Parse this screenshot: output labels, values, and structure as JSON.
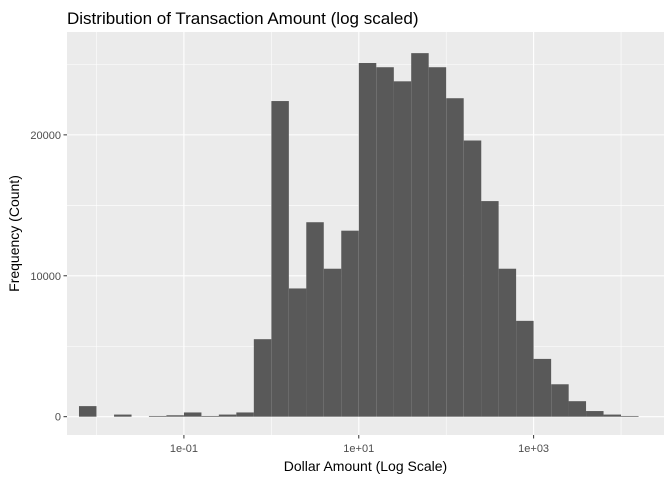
{
  "chart_data": {
    "type": "bar",
    "title": "Distribution of Transaction Amount (log scaled)",
    "xlabel": "Dollar Amount (Log Scale)",
    "ylabel": "Frequency (Count)",
    "x_scale": "log10",
    "x_ticks": [
      {
        "value": 0.1,
        "label": "1e-01"
      },
      {
        "value": 10,
        "label": "1e+01"
      },
      {
        "value": 1000,
        "label": "1e+03"
      }
    ],
    "y_ticks": [
      {
        "value": 0,
        "label": "0"
      },
      {
        "value": 10000,
        "label": "10000"
      },
      {
        "value": 20000,
        "label": "20000"
      }
    ],
    "xlim": [
      0.0046,
      31000
    ],
    "ylim": [
      -1300,
      27300
    ],
    "bin_width_log10": 0.2,
    "bins": [
      {
        "x": 0.00794,
        "count": 750
      },
      {
        "x": 0.0126,
        "count": 0
      },
      {
        "x": 0.02,
        "count": 150
      },
      {
        "x": 0.0316,
        "count": 0
      },
      {
        "x": 0.0501,
        "count": 50
      },
      {
        "x": 0.0794,
        "count": 100
      },
      {
        "x": 0.126,
        "count": 300
      },
      {
        "x": 0.2,
        "count": 50
      },
      {
        "x": 0.316,
        "count": 150
      },
      {
        "x": 0.501,
        "count": 300
      },
      {
        "x": 0.794,
        "count": 5500
      },
      {
        "x": 1.26,
        "count": 22400
      },
      {
        "x": 2.0,
        "count": 9100
      },
      {
        "x": 3.16,
        "count": 13800
      },
      {
        "x": 5.01,
        "count": 10500
      },
      {
        "x": 7.94,
        "count": 13200
      },
      {
        "x": 12.6,
        "count": 25100
      },
      {
        "x": 20.0,
        "count": 24800
      },
      {
        "x": 31.6,
        "count": 23800
      },
      {
        "x": 50.1,
        "count": 25800
      },
      {
        "x": 79.4,
        "count": 24800
      },
      {
        "x": 126,
        "count": 22600
      },
      {
        "x": 200,
        "count": 19600
      },
      {
        "x": 316,
        "count": 15300
      },
      {
        "x": 501,
        "count": 10500
      },
      {
        "x": 794,
        "count": 6800
      },
      {
        "x": 1260,
        "count": 4100
      },
      {
        "x": 2000,
        "count": 2300
      },
      {
        "x": 3160,
        "count": 1100
      },
      {
        "x": 5010,
        "count": 400
      },
      {
        "x": 7940,
        "count": 150
      },
      {
        "x": 12600,
        "count": 50
      }
    ],
    "colors": {
      "panel": "#ebebeb",
      "grid_major": "#ffffff",
      "bar": "#595959",
      "tick": "#333333"
    },
    "grid": true,
    "legend": "none"
  }
}
